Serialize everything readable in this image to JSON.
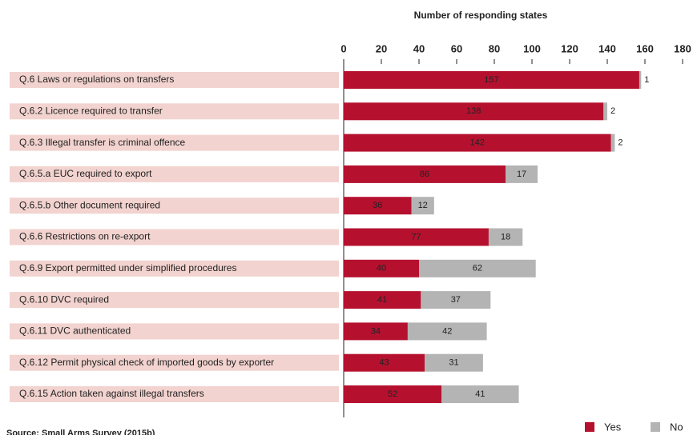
{
  "chart_data": {
    "type": "stacked_barh",
    "x_label": "Number of responding states",
    "categories": [
      "Q.6  Laws or regulations on transfers",
      "Q.6.2  Licence required to transfer",
      "Q.6.3  Illegal transfer is criminal offence",
      "Q.6.5.a  EUC required to export",
      "Q.6.5.b  Other document required",
      "Q.6.6  Restrictions on re-export",
      "Q.6.9  Export permitted under simplified procedures",
      "Q.6.10  DVC required",
      "Q.6.11  DVC authenticated",
      "Q.6.12  Permit physical check of imported goods by exporter",
      "Q.6.15  Action taken against illegal transfers"
    ],
    "series": [
      {
        "name": "Yes",
        "color": "#b5112f",
        "values": [
          157,
          138,
          142,
          86,
          36,
          77,
          40,
          41,
          34,
          43,
          52
        ]
      },
      {
        "name": "No",
        "color": "#b4b4b4",
        "values": [
          1,
          2,
          2,
          17,
          12,
          18,
          62,
          37,
          42,
          31,
          41
        ]
      }
    ],
    "xlim": [
      0,
      180
    ],
    "xticks": [
      0,
      20,
      40,
      60,
      80,
      100,
      120,
      140,
      160,
      180
    ],
    "legend": "bottom-right",
    "source": "Source: Small Arms Survey (2015b)"
  }
}
